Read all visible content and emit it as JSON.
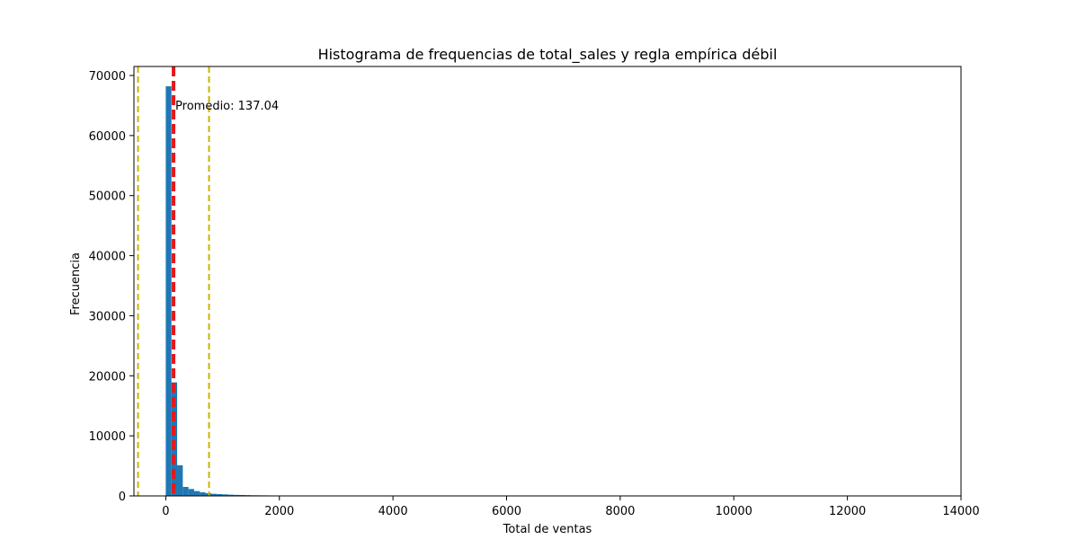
{
  "chart_data": {
    "type": "bar",
    "title": "Histograma de frequencias de total_sales y regla empírica débil",
    "xlabel": "Total de ventas",
    "ylabel": "Frecuencia",
    "xlim": [
      -560,
      14000
    ],
    "ylim": [
      0,
      71500
    ],
    "xticks": [
      0,
      2000,
      4000,
      6000,
      8000,
      10000,
      12000,
      14000
    ],
    "yticks": [
      0,
      10000,
      20000,
      30000,
      40000,
      50000,
      60000,
      70000
    ],
    "bin_width": 100,
    "bins": [
      {
        "x0": 0,
        "x1": 100,
        "count": 68200
      },
      {
        "x0": 100,
        "x1": 200,
        "count": 18900
      },
      {
        "x0": 200,
        "x1": 300,
        "count": 5100
      },
      {
        "x0": 300,
        "x1": 400,
        "count": 1500
      },
      {
        "x0": 400,
        "x1": 500,
        "count": 1150
      },
      {
        "x0": 500,
        "x1": 600,
        "count": 800
      },
      {
        "x0": 600,
        "x1": 700,
        "count": 600
      },
      {
        "x0": 700,
        "x1": 800,
        "count": 450
      },
      {
        "x0": 800,
        "x1": 900,
        "count": 350
      },
      {
        "x0": 900,
        "x1": 1000,
        "count": 300
      },
      {
        "x0": 1000,
        "x1": 1100,
        "count": 250
      },
      {
        "x0": 1100,
        "x1": 1200,
        "count": 200
      },
      {
        "x0": 1200,
        "x1": 1300,
        "count": 170
      },
      {
        "x0": 1300,
        "x1": 1400,
        "count": 150
      },
      {
        "x0": 1400,
        "x1": 1500,
        "count": 130
      },
      {
        "x0": 1500,
        "x1": 1600,
        "count": 110
      },
      {
        "x0": 1600,
        "x1": 1700,
        "count": 100
      },
      {
        "x0": 1700,
        "x1": 1800,
        "count": 90
      },
      {
        "x0": 1800,
        "x1": 1900,
        "count": 80
      },
      {
        "x0": 1900,
        "x1": 2000,
        "count": 70
      }
    ],
    "mean_line": {
      "x": 137.04,
      "color": "#e31a1c",
      "style": "dashed"
    },
    "mean_annotation": "Promedio: 137.04",
    "rule_lines": [
      {
        "x": -488,
        "color": "#c8b400",
        "style": "dashed"
      },
      {
        "x": 762,
        "color": "#c8b400",
        "style": "dashed"
      }
    ],
    "bar_color": "#1f77b4",
    "grid": false,
    "legend": "none"
  }
}
